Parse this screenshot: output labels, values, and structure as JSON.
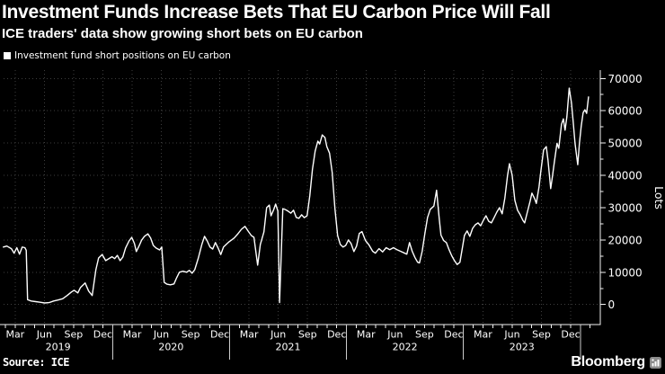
{
  "header": {
    "title": "Investment Funds Increase Bets That EU Carbon Price Will Fall",
    "subtitle": "ICE traders' data show growing short bets on EU carbon"
  },
  "legend": {
    "label": "Investment fund short positions on EU carbon"
  },
  "footer": {
    "source": "Source: ICE",
    "brand": "Bloomberg"
  },
  "colors": {
    "background": "#000000",
    "text": "#ffffff",
    "line": "#ffffff",
    "grid": "#3e3e3e",
    "axis": "#f2f2f2",
    "separator": "#cccccc"
  },
  "chart_data": {
    "type": "line",
    "series_name": "Investment fund short positions on EU carbon",
    "title": "Investment Funds Increase Bets That EU Carbon Price Will Fall",
    "grid": true,
    "x_axis": {
      "type": "time",
      "range": [
        2019.068,
        2024.17
      ],
      "quarter_labels": [
        "Mar",
        "Jun",
        "Sep",
        "Dec"
      ],
      "quarter_months": [
        2,
        5,
        8,
        11
      ],
      "years": [
        "2019",
        "2020",
        "2021",
        "2022",
        "2023"
      ],
      "year_separators": [
        2020,
        2021,
        2022,
        2023,
        2024
      ]
    },
    "y_axis": {
      "label": "Lots",
      "ticks": [
        0,
        10000,
        20000,
        30000,
        40000,
        50000,
        60000,
        70000
      ],
      "minor_step": 5000,
      "range": [
        -6194,
        72583
      ]
    },
    "points": [
      [
        2019.066,
        17800
      ],
      [
        2019.096,
        18100
      ],
      [
        2019.135,
        17300
      ],
      [
        2019.158,
        15900
      ],
      [
        2019.181,
        17600
      ],
      [
        2019.204,
        15600
      ],
      [
        2019.227,
        17800
      ],
      [
        2019.25,
        17600
      ],
      [
        2019.262,
        16800
      ],
      [
        2019.273,
        1500
      ],
      [
        2019.304,
        1100
      ],
      [
        2019.342,
        900
      ],
      [
        2019.381,
        700
      ],
      [
        2019.419,
        500
      ],
      [
        2019.457,
        600
      ],
      [
        2019.496,
        1100
      ],
      [
        2019.534,
        1400
      ],
      [
        2019.573,
        1800
      ],
      [
        2019.611,
        2800
      ],
      [
        2019.649,
        3900
      ],
      [
        2019.672,
        4400
      ],
      [
        2019.703,
        3600
      ],
      [
        2019.726,
        5300
      ],
      [
        2019.765,
        6700
      ],
      [
        2019.795,
        4200
      ],
      [
        2019.826,
        2800
      ],
      [
        2019.857,
        10800
      ],
      [
        2019.88,
        14400
      ],
      [
        2019.911,
        15500
      ],
      [
        2019.941,
        13600
      ],
      [
        2019.972,
        14300
      ],
      [
        2019.995,
        14800
      ],
      [
        2020.018,
        14200
      ],
      [
        2020.041,
        15200
      ],
      [
        2020.064,
        13600
      ],
      [
        2020.088,
        14700
      ],
      [
        2020.111,
        17500
      ],
      [
        2020.141,
        19700
      ],
      [
        2020.164,
        20800
      ],
      [
        2020.187,
        18900
      ],
      [
        2020.203,
        16400
      ],
      [
        2020.226,
        18100
      ],
      [
        2020.249,
        20000
      ],
      [
        2020.272,
        21100
      ],
      [
        2020.302,
        21900
      ],
      [
        2020.325,
        20600
      ],
      [
        2020.348,
        18300
      ],
      [
        2020.372,
        17500
      ],
      [
        2020.402,
        16900
      ],
      [
        2020.42,
        17800
      ],
      [
        2020.441,
        6900
      ],
      [
        2020.464,
        6300
      ],
      [
        2020.494,
        6100
      ],
      [
        2020.525,
        6400
      ],
      [
        2020.548,
        8300
      ],
      [
        2020.571,
        10000
      ],
      [
        2020.602,
        10300
      ],
      [
        2020.633,
        10000
      ],
      [
        2020.656,
        10600
      ],
      [
        2020.679,
        9700
      ],
      [
        2020.702,
        10800
      ],
      [
        2020.733,
        14400
      ],
      [
        2020.763,
        18600
      ],
      [
        2020.786,
        21100
      ],
      [
        2020.809,
        19700
      ],
      [
        2020.833,
        17800
      ],
      [
        2020.856,
        17200
      ],
      [
        2020.879,
        19200
      ],
      [
        2020.902,
        17500
      ],
      [
        2020.925,
        15500
      ],
      [
        2020.948,
        17800
      ],
      [
        2020.971,
        18600
      ],
      [
        2020.994,
        19400
      ],
      [
        2021.017,
        20000
      ],
      [
        2021.04,
        20600
      ],
      [
        2021.071,
        21900
      ],
      [
        2021.102,
        23300
      ],
      [
        2021.132,
        24200
      ],
      [
        2021.163,
        22500
      ],
      [
        2021.186,
        21400
      ],
      [
        2021.209,
        20800
      ],
      [
        2021.24,
        12200
      ],
      [
        2021.263,
        18600
      ],
      [
        2021.294,
        22500
      ],
      [
        2021.317,
        30000
      ],
      [
        2021.34,
        30800
      ],
      [
        2021.355,
        27500
      ],
      [
        2021.378,
        29400
      ],
      [
        2021.394,
        31100
      ],
      [
        2021.413,
        29000
      ],
      [
        2021.428,
        600
      ],
      [
        2021.455,
        29700
      ],
      [
        2021.478,
        29400
      ],
      [
        2021.501,
        28900
      ],
      [
        2021.524,
        28300
      ],
      [
        2021.547,
        29200
      ],
      [
        2021.57,
        27000
      ],
      [
        2021.593,
        26700
      ],
      [
        2021.616,
        27800
      ],
      [
        2021.639,
        26900
      ],
      [
        2021.663,
        27500
      ],
      [
        2021.686,
        33600
      ],
      [
        2021.709,
        41900
      ],
      [
        2021.732,
        47500
      ],
      [
        2021.755,
        50600
      ],
      [
        2021.77,
        49700
      ],
      [
        2021.793,
        52500
      ],
      [
        2021.816,
        51700
      ],
      [
        2021.832,
        48900
      ],
      [
        2021.855,
        46900
      ],
      [
        2021.878,
        40800
      ],
      [
        2021.901,
        29700
      ],
      [
        2021.924,
        21400
      ],
      [
        2021.947,
        18600
      ],
      [
        2021.97,
        17800
      ],
      [
        2021.993,
        18300
      ],
      [
        2022.016,
        20000
      ],
      [
        2022.039,
        18900
      ],
      [
        2022.063,
        16400
      ],
      [
        2022.086,
        18100
      ],
      [
        2022.109,
        22000
      ],
      [
        2022.132,
        22600
      ],
      [
        2022.162,
        19800
      ],
      [
        2022.193,
        18400
      ],
      [
        2022.224,
        16500
      ],
      [
        2022.247,
        15900
      ],
      [
        2022.278,
        17300
      ],
      [
        2022.309,
        16300
      ],
      [
        2022.339,
        17600
      ],
      [
        2022.37,
        17000
      ],
      [
        2022.401,
        17600
      ],
      [
        2022.432,
        17000
      ],
      [
        2022.462,
        16500
      ],
      [
        2022.493,
        16000
      ],
      [
        2022.516,
        15600
      ],
      [
        2022.539,
        19200
      ],
      [
        2022.562,
        16500
      ],
      [
        2022.585,
        14600
      ],
      [
        2022.608,
        13100
      ],
      [
        2022.624,
        12900
      ],
      [
        2022.647,
        16500
      ],
      [
        2022.67,
        22000
      ],
      [
        2022.693,
        27000
      ],
      [
        2022.716,
        29500
      ],
      [
        2022.747,
        30500
      ],
      [
        2022.77,
        35400
      ],
      [
        2022.793,
        26500
      ],
      [
        2022.808,
        21500
      ],
      [
        2022.831,
        19800
      ],
      [
        2022.854,
        19200
      ],
      [
        2022.877,
        17000
      ],
      [
        2022.9,
        15100
      ],
      [
        2022.923,
        13600
      ],
      [
        2022.946,
        12400
      ],
      [
        2022.97,
        13100
      ],
      [
        2022.993,
        18000
      ],
      [
        2023.008,
        21400
      ],
      [
        2023.031,
        22800
      ],
      [
        2023.054,
        21100
      ],
      [
        2023.078,
        23600
      ],
      [
        2023.101,
        24700
      ],
      [
        2023.124,
        25300
      ],
      [
        2023.147,
        24400
      ],
      [
        2023.17,
        26100
      ],
      [
        2023.193,
        27500
      ],
      [
        2023.216,
        25800
      ],
      [
        2023.239,
        25300
      ],
      [
        2023.262,
        26900
      ],
      [
        2023.285,
        28600
      ],
      [
        2023.308,
        30000
      ],
      [
        2023.331,
        28100
      ],
      [
        2023.354,
        33000
      ],
      [
        2023.377,
        40000
      ],
      [
        2023.393,
        43600
      ],
      [
        2023.416,
        40100
      ],
      [
        2023.439,
        32300
      ],
      [
        2023.462,
        29200
      ],
      [
        2023.485,
        27800
      ],
      [
        2023.508,
        26100
      ],
      [
        2023.523,
        25300
      ],
      [
        2023.546,
        28600
      ],
      [
        2023.57,
        32000
      ],
      [
        2023.585,
        34500
      ],
      [
        2023.608,
        32800
      ],
      [
        2023.623,
        31300
      ],
      [
        2023.646,
        36400
      ],
      [
        2023.662,
        41400
      ],
      [
        2023.685,
        47900
      ],
      [
        2023.708,
        48900
      ],
      [
        2023.723,
        44700
      ],
      [
        2023.746,
        35900
      ],
      [
        2023.762,
        40000
      ],
      [
        2023.777,
        44200
      ],
      [
        2023.8,
        49900
      ],
      [
        2023.815,
        48400
      ],
      [
        2023.838,
        55800
      ],
      [
        2023.854,
        57500
      ],
      [
        2023.869,
        54000
      ],
      [
        2023.884,
        58100
      ],
      [
        2023.904,
        67000
      ],
      [
        2023.923,
        62500
      ],
      [
        2023.938,
        56700
      ],
      [
        2023.954,
        49900
      ],
      [
        2023.977,
        43300
      ],
      [
        2023.992,
        50000
      ],
      [
        2024.007,
        55300
      ],
      [
        2024.023,
        59400
      ],
      [
        2024.038,
        60300
      ],
      [
        2024.053,
        59200
      ],
      [
        2024.069,
        64300
      ]
    ]
  }
}
